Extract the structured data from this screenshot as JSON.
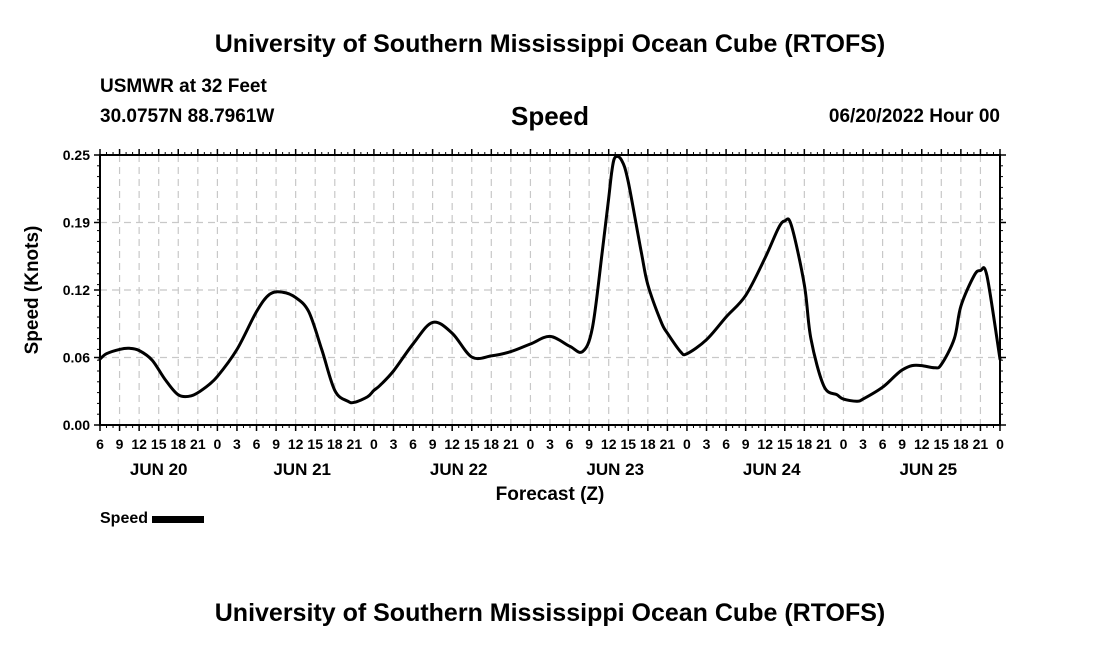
{
  "header": {
    "title": "University of Southern Mississippi Ocean Cube (RTOFS)",
    "station": "USMWR at 32 Feet",
    "coordinates": "30.0757N  88.7961W",
    "variable": "Speed",
    "run_time": "06/20/2022 Hour 00"
  },
  "footer": {
    "title": "University of Southern Mississippi Ocean Cube (RTOFS)"
  },
  "legend": {
    "label": "Speed",
    "color": "#000000"
  },
  "chart_data": {
    "type": "line",
    "title": "Speed",
    "xlabel": "Forecast (Z)",
    "ylabel": "Speed (Knots)",
    "ylim": [
      0,
      0.25
    ],
    "yticks": [
      "0.00",
      "0.06",
      "0.12",
      "0.19",
      "0.25"
    ],
    "ytick_values": [
      0,
      0.0625,
      0.125,
      0.1875,
      0.25
    ],
    "xlim_hours": [
      6,
      144
    ],
    "xtick_hours": [
      6,
      9,
      12,
      15,
      18,
      21,
      24,
      27,
      30,
      33,
      36,
      39,
      42,
      45,
      48,
      51,
      54,
      57,
      60,
      63,
      66,
      69,
      72,
      75,
      78,
      81,
      84,
      87,
      90,
      93,
      96,
      99,
      102,
      105,
      108,
      111,
      114,
      117,
      120,
      123,
      126,
      129,
      132,
      135,
      138,
      141,
      144
    ],
    "xtick_labels": [
      "6",
      "9",
      "12",
      "15",
      "18",
      "21",
      "0",
      "3",
      "6",
      "9",
      "12",
      "15",
      "18",
      "21",
      "0",
      "3",
      "6",
      "9",
      "12",
      "15",
      "18",
      "21",
      "0",
      "3",
      "6",
      "9",
      "12",
      "15",
      "18",
      "21",
      "0",
      "3",
      "6",
      "9",
      "12",
      "15",
      "18",
      "21",
      "0",
      "3",
      "6",
      "9",
      "12",
      "15",
      "18",
      "21",
      "0"
    ],
    "day_labels": [
      {
        "label": "JUN 20",
        "hour": 15
      },
      {
        "label": "JUN 21",
        "hour": 37
      },
      {
        "label": "JUN 22",
        "hour": 61
      },
      {
        "label": "JUN 23",
        "hour": 85
      },
      {
        "label": "JUN 24",
        "hour": 109
      },
      {
        "label": "JUN 25",
        "hour": 133
      }
    ],
    "grid": true,
    "series": [
      {
        "name": "Speed",
        "color": "#000000",
        "x_hours": [
          6,
          7,
          9,
          10.5,
          12,
          14,
          16,
          18,
          20,
          22,
          24,
          27,
          30,
          32,
          34,
          36,
          38,
          40,
          42,
          44,
          45,
          47,
          48,
          49,
          51,
          54,
          57,
          60,
          63,
          66,
          69,
          72,
          75,
          78,
          80,
          81.5,
          83,
          84,
          84.5,
          85,
          86,
          87,
          89,
          90,
          92,
          93,
          95,
          96,
          99,
          102,
          105,
          108,
          110,
          111,
          112,
          114,
          115,
          117,
          119,
          120,
          122,
          123,
          126,
          128,
          129,
          130.5,
          132,
          134,
          135,
          137,
          138,
          140,
          141,
          142,
          144
        ],
        "values": [
          0.061,
          0.066,
          0.07,
          0.071,
          0.069,
          0.06,
          0.042,
          0.028,
          0.027,
          0.034,
          0.045,
          0.07,
          0.105,
          0.121,
          0.123,
          0.118,
          0.105,
          0.07,
          0.032,
          0.022,
          0.021,
          0.026,
          0.032,
          0.037,
          0.05,
          0.075,
          0.095,
          0.085,
          0.063,
          0.064,
          0.068,
          0.075,
          0.082,
          0.073,
          0.068,
          0.09,
          0.16,
          0.21,
          0.236,
          0.248,
          0.245,
          0.225,
          0.16,
          0.13,
          0.096,
          0.085,
          0.068,
          0.066,
          0.079,
          0.1,
          0.12,
          0.155,
          0.182,
          0.189,
          0.185,
          0.13,
          0.08,
          0.036,
          0.028,
          0.024,
          0.022,
          0.024,
          0.035,
          0.046,
          0.051,
          0.055,
          0.055,
          0.053,
          0.056,
          0.08,
          0.11,
          0.138,
          0.143,
          0.138,
          0.061
        ]
      }
    ]
  }
}
